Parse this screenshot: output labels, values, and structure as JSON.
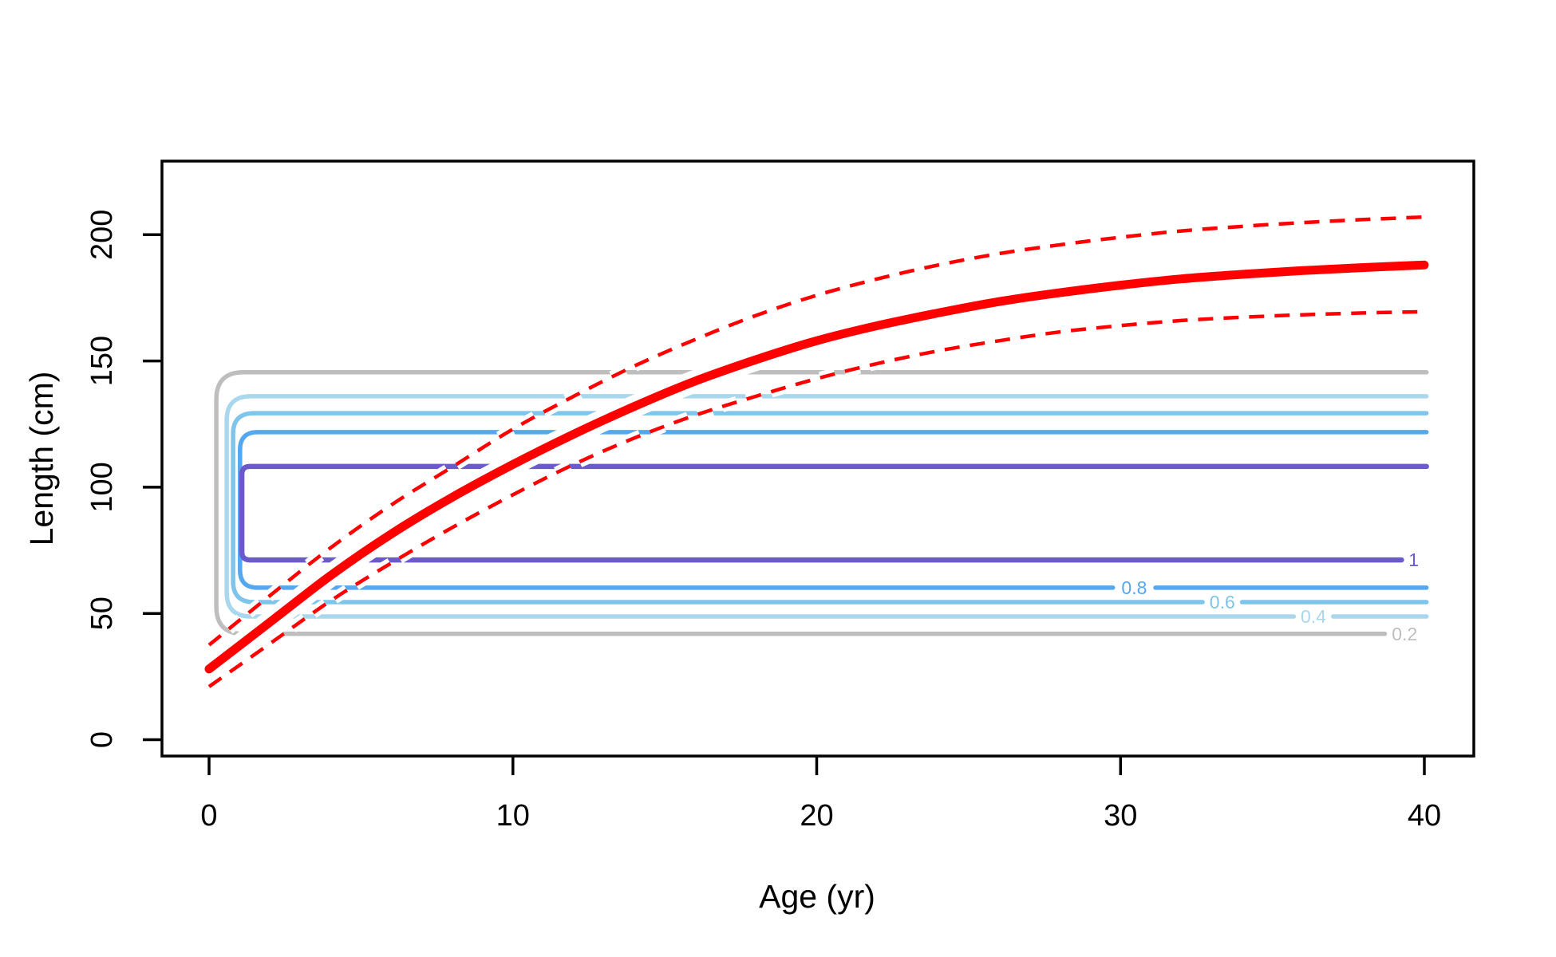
{
  "axes": {
    "xlabel": "Age (yr)",
    "ylabel": "Length (cm)",
    "x_ticks": [
      "0",
      "10",
      "20",
      "30",
      "40"
    ],
    "x_tick_values": [
      0,
      10,
      20,
      30,
      40
    ],
    "y_ticks": [
      "0",
      "50",
      "100",
      "150",
      "200"
    ],
    "y_tick_values": [
      0,
      50,
      100,
      150,
      200
    ],
    "xlim": [
      -1.55,
      41.6
    ],
    "ylim": [
      -6.5,
      229.5
    ],
    "grid": "off",
    "box_color": "#000000"
  },
  "chart_data": {
    "type": "line",
    "title": "",
    "xlabel": "Age (yr)",
    "ylabel": "Length (cm)",
    "legend_position": "none",
    "series": [
      {
        "name": "mean-growth-curve",
        "style": "solid",
        "color": "#FF0000",
        "width": 11,
        "x": [
          0,
          2,
          4,
          6,
          8,
          10,
          12,
          14,
          16,
          18,
          20,
          22,
          24,
          26,
          28,
          30,
          32,
          34,
          36,
          38,
          40
        ],
        "y": [
          28,
          46.5,
          65,
          81.5,
          96,
          109,
          121,
          132,
          142,
          150.5,
          158,
          164,
          169,
          173.5,
          177,
          180,
          182.5,
          184.3,
          185.8,
          187,
          188
        ]
      },
      {
        "name": "upper-confidence-band",
        "style": "dashed",
        "color": "#FF0000",
        "width": 4.5,
        "x": [
          0,
          2,
          4,
          6,
          8,
          10,
          12,
          14,
          16,
          18,
          20,
          22,
          24,
          26,
          28,
          30,
          32,
          34,
          36,
          38,
          40
        ],
        "y": [
          37.5,
          57,
          76,
          93,
          108,
          123,
          136,
          148,
          158.5,
          168,
          176,
          182.5,
          188,
          192.5,
          196,
          199,
          201.5,
          203.3,
          204.8,
          206,
          207
        ]
      },
      {
        "name": "lower-confidence-band",
        "style": "dashed",
        "color": "#FF0000",
        "width": 4.5,
        "x": [
          0,
          2,
          4,
          6,
          8,
          10,
          12,
          14,
          16,
          18,
          20,
          22,
          24,
          26,
          28,
          30,
          32,
          34,
          36,
          38,
          40
        ],
        "y": [
          21,
          38,
          55,
          70,
          84,
          97,
          109,
          119.5,
          128.5,
          136,
          143,
          149,
          154,
          158,
          161.5,
          164,
          166,
          167.3,
          168.3,
          169,
          169.5
        ]
      }
    ],
    "contours": [
      {
        "level": 0.2,
        "label": "0.2",
        "color": "#BEBEBE",
        "width": 5.5,
        "top": 145.5,
        "bottom": 41.9,
        "left_age": 0.24,
        "right_age": 40.07,
        "corner_r": 34,
        "bottom_right_age": 38.7,
        "label_age": 39.35
      },
      {
        "level": 0.4,
        "label": "0.4",
        "color": "#A9D7EE",
        "width": 5.5,
        "top": 136.0,
        "bottom": 48.8,
        "left_age": 0.58,
        "right_age": 40.07,
        "corner_r": 30,
        "gap": [
          35.7,
          37.0
        ],
        "label_age": 36.35
      },
      {
        "level": 0.6,
        "label": "0.6",
        "color": "#7FC4EA",
        "width": 5.5,
        "top": 129.3,
        "bottom": 54.5,
        "left_age": 0.79,
        "right_age": 40.07,
        "corner_r": 26,
        "gap": [
          32.7,
          34.0
        ],
        "label_age": 33.35
      },
      {
        "level": 0.8,
        "label": "0.8",
        "color": "#55A7F0",
        "width": 5.5,
        "top": 121.8,
        "bottom": 60.2,
        "left_age": 1.02,
        "right_age": 40.07,
        "corner_r": 22,
        "gap": [
          29.75,
          31.15
        ],
        "label_age": 30.45
      },
      {
        "level": 1.0,
        "label": "1",
        "color": "#6A5ACD",
        "width": 6.5,
        "top": 108.2,
        "bottom": 71.2,
        "left_age": 1.08,
        "right_age": 40.07,
        "corner_r": 10,
        "bottom_right_age": 39.25,
        "label_age": 39.65
      }
    ]
  },
  "colors": {
    "curve_red": "#FF0000",
    "halo_white": "#FFFFFF",
    "contour_02": "#BEBEBE",
    "contour_04": "#A9D7EE",
    "contour_06": "#7FC4EA",
    "contour_08": "#55A7F0",
    "contour_10": "#6A5ACD",
    "background": "#FFFFFF",
    "axis": "#000000"
  }
}
